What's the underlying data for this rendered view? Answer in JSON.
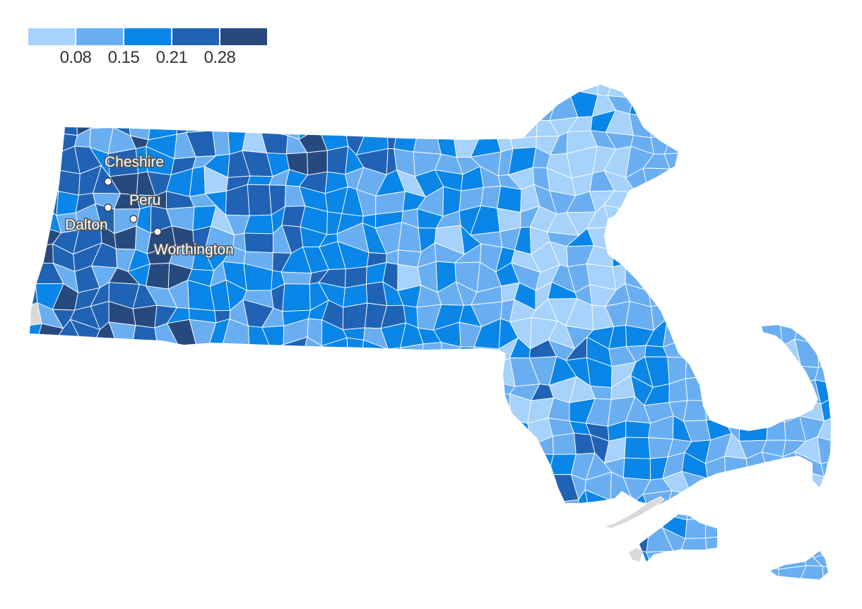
{
  "legend": {
    "colors": [
      "#a6d2fb",
      "#6aaef2",
      "#0a86e8",
      "#2063b5",
      "#274a7e"
    ],
    "ticks": [
      "0.08",
      "0.15",
      "0.21",
      "0.28"
    ]
  },
  "labels": [
    {
      "name": "Cheshire"
    },
    {
      "name": "Peru"
    },
    {
      "name": "Dalton"
    },
    {
      "name": "Worthington"
    }
  ],
  "colors": {
    "no_data": "#d9d9d9",
    "border": "#ffffff"
  }
}
